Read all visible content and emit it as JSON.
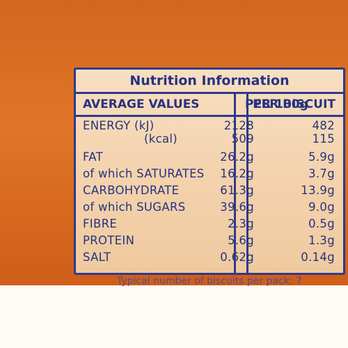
{
  "title": "Nutrition Information",
  "columns": {
    "label": "AVERAGE VALUES",
    "per100": "PER 100g",
    "perBiscuit": "PER BISCUIT"
  },
  "rows": [
    {
      "label": "ENERGY (kJ)",
      "per100": "2128",
      "perBiscuit": "482"
    },
    {
      "label": "(kcal)",
      "per100": "509",
      "perBiscuit": "115"
    },
    {
      "label": "FAT",
      "per100": "26.2g",
      "perBiscuit": "5.9g"
    },
    {
      "label": "of which SATURATES",
      "per100": "16.2g",
      "perBiscuit": "3.7g"
    },
    {
      "label": "CARBOHYDRATE",
      "per100": "61.3g",
      "perBiscuit": "13.9g"
    },
    {
      "label": "of which SUGARS",
      "per100": "39.6g",
      "perBiscuit": "9.0g"
    },
    {
      "label": "FIBRE",
      "per100": "2.3g",
      "perBiscuit": "0.5g"
    },
    {
      "label": "PROTEIN",
      "per100": "5.6g",
      "perBiscuit": "1.3g"
    },
    {
      "label": "SALT",
      "per100": "0.62g",
      "perBiscuit": "0.14g"
    }
  ],
  "footer": "Typical number of biscuits per pack: 7",
  "colors": {
    "ink": "#263380",
    "panel": "#f5d6b2",
    "packaging": "#e07527"
  }
}
